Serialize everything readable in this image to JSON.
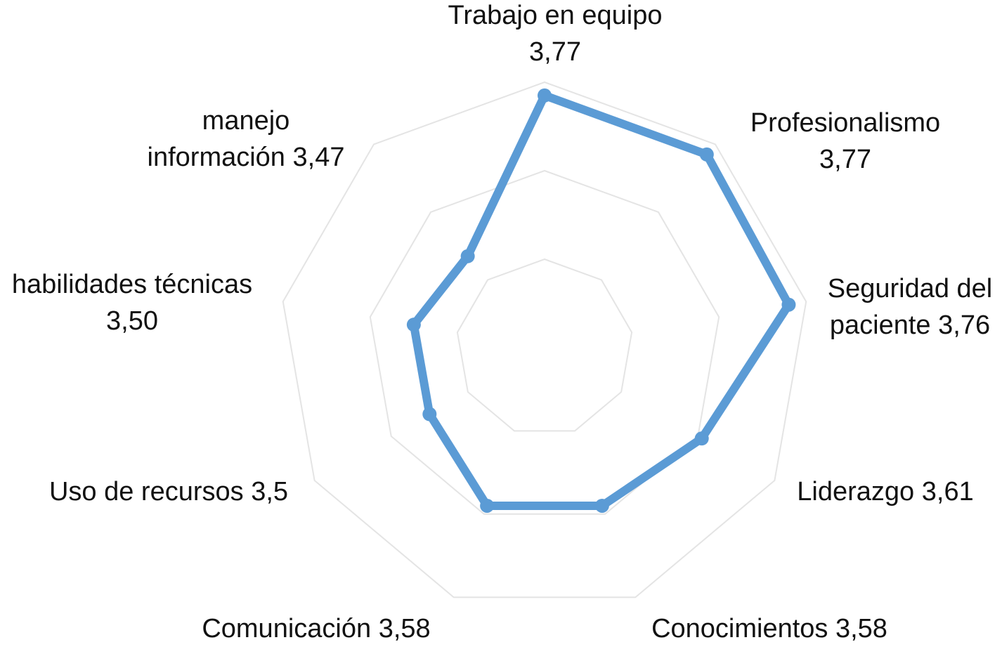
{
  "chart_data": {
    "type": "radar",
    "categories": [
      "Trabajo en equipo",
      "Profesionalismo",
      "Seguridad del paciente",
      "Liderazgo",
      "Conocimientos",
      "Comunicación",
      "Uso de recursos",
      "habilidades técnicas",
      "manejo información"
    ],
    "values": [
      3.77,
      3.77,
      3.76,
      3.61,
      3.58,
      3.58,
      3.5,
      3.5,
      3.47
    ],
    "value_labels": [
      "3,77",
      "3,77",
      "3,76",
      "3,61",
      "3,58",
      "3,58",
      "3,5",
      "3,50",
      "3,47"
    ],
    "color": "#5b9bd5",
    "rlim": [
      3.2,
      3.8
    ],
    "rticks": [
      3.4,
      3.6,
      3.8
    ],
    "grid": true
  }
}
